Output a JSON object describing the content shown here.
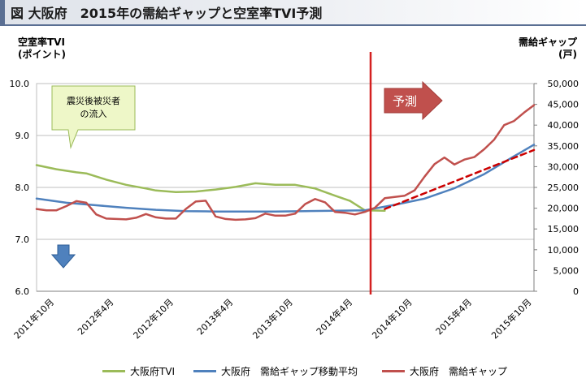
{
  "title": "図 大阪府　2015年の需給ギャップと空室率TVI予測",
  "left_axis_title": [
    "空室率TVI",
    "(ポイント)"
  ],
  "right_axis_title": [
    "需給ギャップ",
    "(戸)"
  ],
  "colors": {
    "tvi": "#9bbb59",
    "ma": "#4f81bd",
    "gap": "#c0504d",
    "forecast": "#cc0000",
    "divider": "#d42020"
  },
  "chart_data": {
    "type": "line",
    "title": "",
    "x_labels": [
      "2011年10月",
      "2012年4月",
      "2012年10月",
      "2013年4月",
      "2013年10月",
      "2014年4月",
      "2014年10月",
      "2015年4月",
      "2015年10月"
    ],
    "x_range": [
      0,
      50
    ],
    "y_left_range": [
      6.0,
      10.0
    ],
    "y_left_ticks": [
      "6.0",
      "7.0",
      "8.0",
      "9.0",
      "10.0"
    ],
    "y_right_range": [
      0,
      50000
    ],
    "y_right_ticks": [
      "0",
      "5,000",
      "10,000",
      "15,000",
      "20,000",
      "25,000",
      "30,000",
      "35,000",
      "40,000",
      "45,000",
      "50,000"
    ],
    "forecast_label": "予測",
    "annotation": [
      "震災後被災者",
      "の流入"
    ],
    "series": [
      {
        "name": "大阪府TVI",
        "axis": "left",
        "key": "tvi",
        "x": [
          0,
          2,
          4,
          5,
          7,
          9,
          11,
          12,
          14,
          16,
          18,
          20,
          22,
          24,
          26,
          28,
          30,
          31.5
        ],
        "y": [
          8.43,
          8.35,
          8.29,
          8.27,
          8.15,
          8.05,
          7.98,
          7.94,
          7.91,
          7.92,
          7.96,
          8.01,
          8.08,
          8.05,
          8.05,
          7.98,
          7.84,
          7.74
        ]
      },
      {
        "name": "大阪府TVI",
        "axis": "left",
        "key": "tvi",
        "x": [
          31.5,
          33,
          35
        ],
        "y": [
          7.74,
          7.56,
          7.55
        ]
      },
      {
        "name": "大阪府 需給ギャップ移動平均",
        "axis": "right",
        "key": "ma",
        "x": [
          0,
          3,
          6,
          9,
          12,
          15,
          18,
          21,
          24,
          27,
          30,
          33,
          36,
          39,
          42,
          45,
          48,
          50
        ],
        "y": [
          22300,
          21300,
          20700,
          20100,
          19600,
          19300,
          19200,
          19200,
          19200,
          19300,
          19400,
          19500,
          20800,
          22300,
          24800,
          28200,
          32500,
          35300
        ]
      },
      {
        "name": "大阪府 需給ギャップ",
        "axis": "right",
        "key": "gap",
        "x": [
          0,
          1,
          2,
          3,
          4,
          5,
          6,
          7,
          8,
          9,
          10,
          11,
          12,
          13,
          14,
          15,
          16,
          17,
          18,
          19,
          20,
          21,
          22,
          23,
          24,
          25,
          26,
          27,
          28,
          29,
          30,
          31,
          32,
          33,
          34,
          35,
          36,
          37,
          38,
          39,
          40,
          41,
          42,
          43,
          44,
          45,
          46,
          47,
          48,
          49,
          50
        ],
        "y": [
          19800,
          19500,
          19500,
          20500,
          21700,
          21300,
          18500,
          17500,
          17400,
          17300,
          17700,
          18600,
          17800,
          17500,
          17500,
          19800,
          21600,
          21800,
          18000,
          17400,
          17200,
          17300,
          17600,
          18700,
          18200,
          18200,
          18700,
          21000,
          22200,
          21400,
          19100,
          18900,
          18500,
          19100,
          20100,
          22400,
          22700,
          23000,
          24300,
          27600,
          30600,
          32200,
          30500,
          31700,
          32300,
          34200,
          36500,
          40000,
          41000,
          43000,
          44800
        ]
      },
      {
        "name": "forecast",
        "axis": "right",
        "key": "forecast",
        "x": [
          35,
          50
        ],
        "y": [
          19800,
          34000
        ]
      }
    ]
  },
  "legend": [
    {
      "label": "大阪府TVI",
      "key": "tvi"
    },
    {
      "label": "大阪府　需給ギャップ移動平均",
      "key": "ma"
    },
    {
      "label": "大阪府　需給ギャップ",
      "key": "gap"
    }
  ]
}
